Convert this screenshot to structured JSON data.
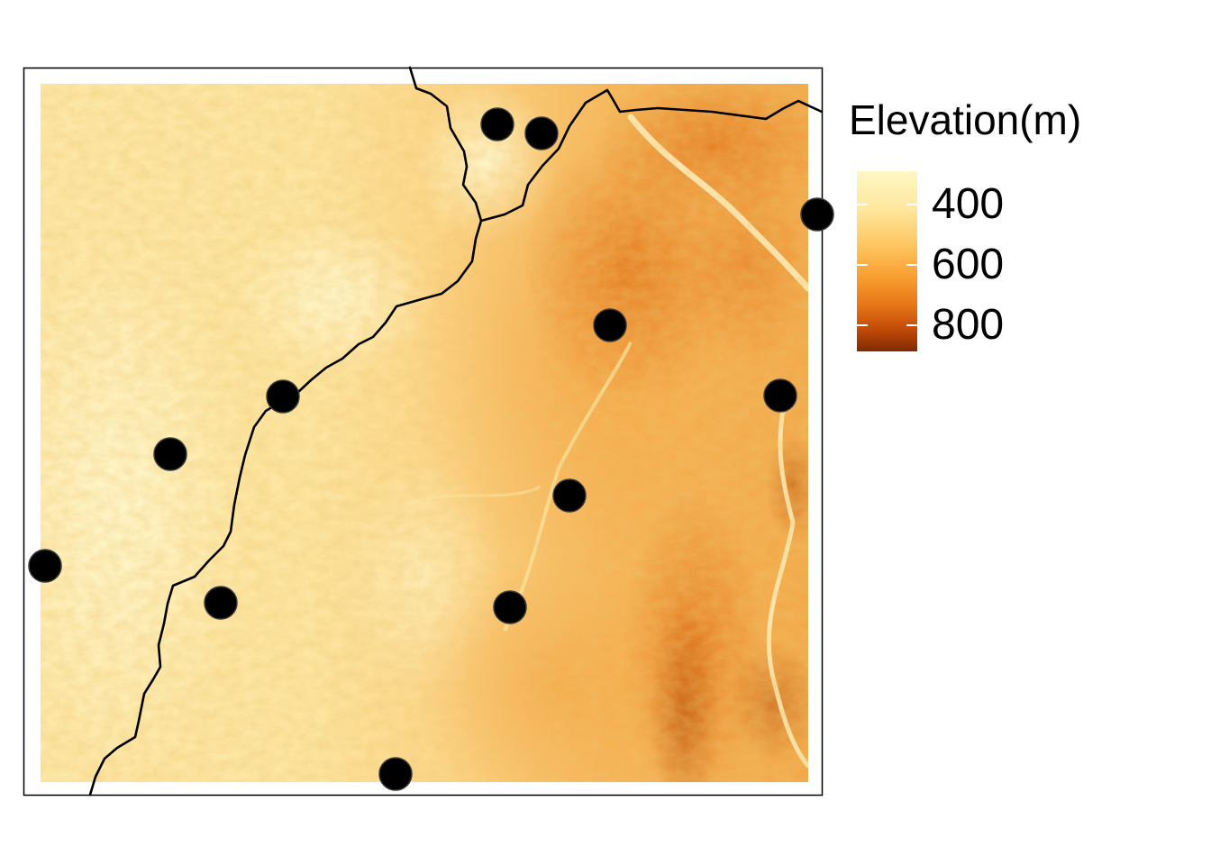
{
  "legend": {
    "title": "Elevation(m)",
    "labels": [
      "400",
      "600",
      "800"
    ],
    "values": [
      400,
      600,
      800
    ],
    "scale_min": 330,
    "scale_max": 880,
    "colors": [
      "#fff7bc",
      "#fee391",
      "#fec44f",
      "#fe9929",
      "#ec7014",
      "#cc4c02",
      "#8c2d04"
    ]
  },
  "map": {
    "frame_color": "#000000",
    "point_color": "#000000",
    "line_color": "#000000",
    "raster_ramp": "YlOrBr"
  }
}
